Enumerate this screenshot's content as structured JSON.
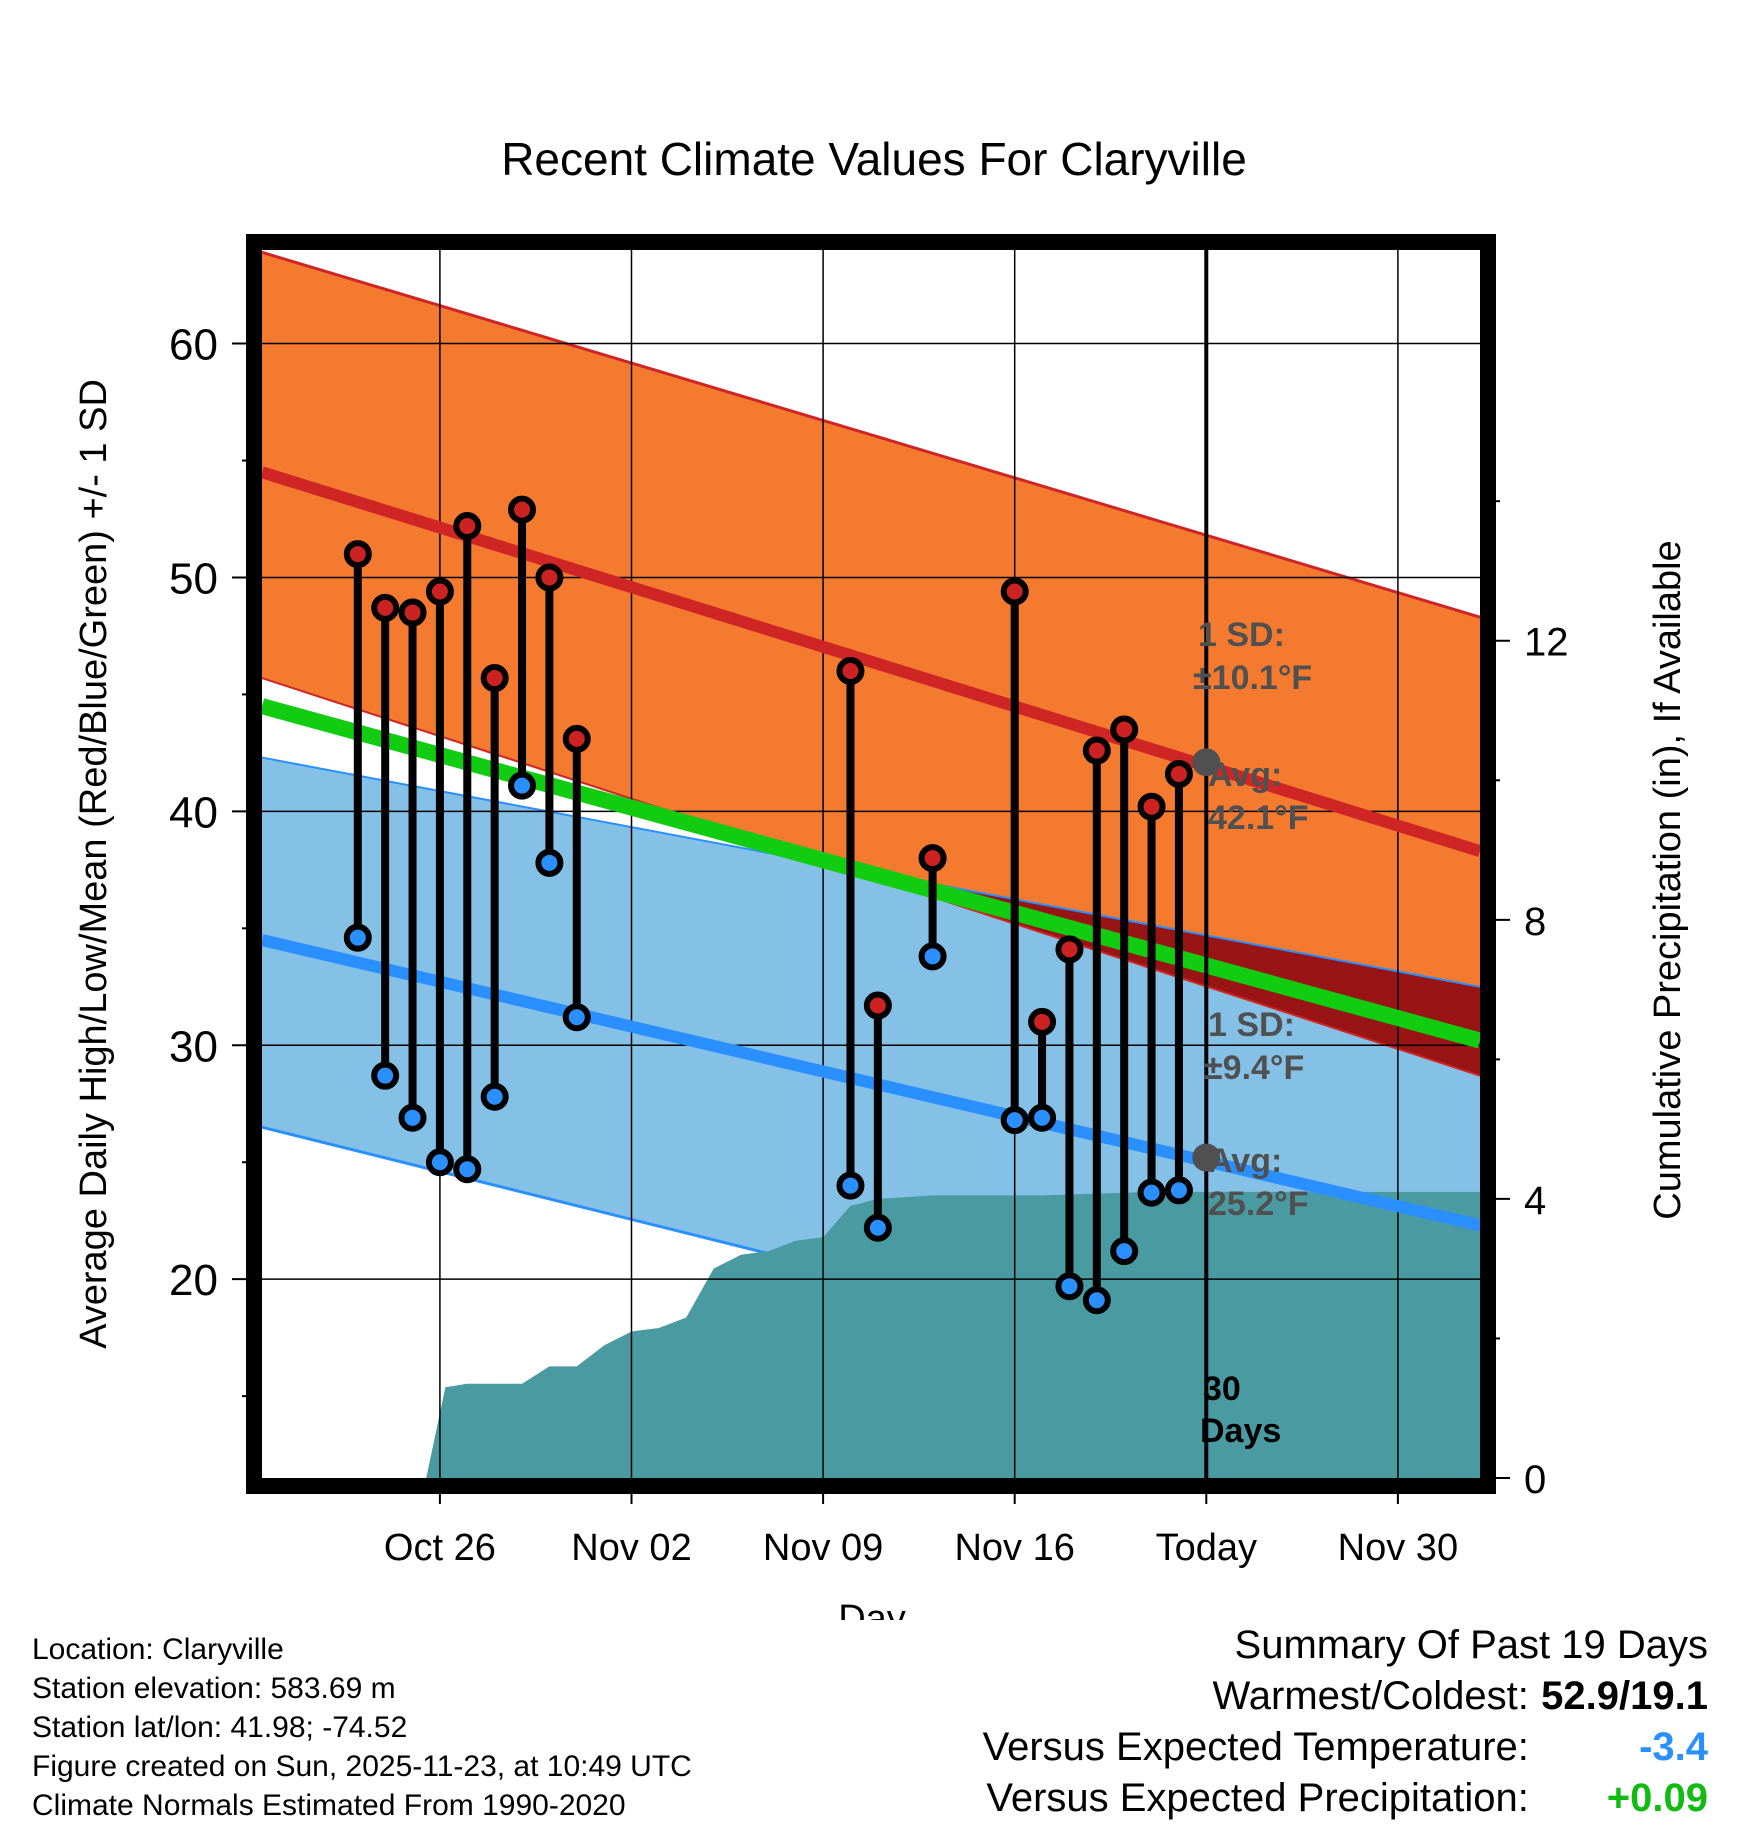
{
  "chart_data": {
    "type": "line",
    "title": "Recent Climate Values For Claryville",
    "xlabel": "Day",
    "ylabel": "Average Daily High/Low/Mean (Red/Blue/Green) +/- 1 SD",
    "y2label": "Cumulative Precipitation (in), If Available",
    "ylim": [
      11.5,
      64
    ],
    "y2lim": [
      0,
      17.6
    ],
    "xlim_days_from_today": [
      -34.5,
      10
    ],
    "x_ticks": [
      {
        "label": "Oct 26",
        "day": -28
      },
      {
        "label": "Nov 02",
        "day": -21
      },
      {
        "label": "Nov 09",
        "day": -14
      },
      {
        "label": "Nov 16",
        "day": -7
      },
      {
        "label": "Today",
        "day": 0
      },
      {
        "label": "Nov 30",
        "day": 7
      }
    ],
    "y_ticks": [
      20,
      30,
      40,
      50,
      60
    ],
    "y2_ticks": [
      0,
      4,
      8,
      12
    ],
    "normals": {
      "start_day": -34.5,
      "end_day": 10,
      "high_avg": [
        54.5,
        38.3
      ],
      "high_upper": [
        63.9,
        48.3
      ],
      "high_lower": [
        45.7,
        28.7
      ],
      "low_avg": [
        34.5,
        22.3
      ],
      "low_upper": [
        42.3,
        32.5
      ],
      "low_lower": [
        26.5,
        13.5
      ],
      "mean_avg": [
        44.5,
        30.2
      ]
    },
    "series": [
      {
        "name": "Daily High",
        "color": "#cc2222",
        "points": [
          {
            "day": -31,
            "value": 51.0
          },
          {
            "day": -30,
            "value": 48.7
          },
          {
            "day": -29,
            "value": 48.5
          },
          {
            "day": -28,
            "value": 49.4
          },
          {
            "day": -27,
            "value": 52.2
          },
          {
            "day": -26,
            "value": 45.7
          },
          {
            "day": -25,
            "value": 52.9
          },
          {
            "day": -24,
            "value": 50.0
          },
          {
            "day": -23,
            "value": 43.1
          },
          {
            "day": -13,
            "value": 46.0
          },
          {
            "day": -12,
            "value": 31.7
          },
          {
            "day": -10,
            "value": 38.0
          },
          {
            "day": -7,
            "value": 49.4
          },
          {
            "day": -6,
            "value": 31.0
          },
          {
            "day": -5,
            "value": 34.1
          },
          {
            "day": -4,
            "value": 42.6
          },
          {
            "day": -3,
            "value": 43.5
          },
          {
            "day": -2,
            "value": 40.2
          },
          {
            "day": -1,
            "value": 41.6
          }
        ]
      },
      {
        "name": "Daily Low",
        "color": "#2a8fff",
        "points": [
          {
            "day": -31,
            "value": 34.6
          },
          {
            "day": -30,
            "value": 28.7
          },
          {
            "day": -29,
            "value": 26.9
          },
          {
            "day": -28,
            "value": 25.0
          },
          {
            "day": -27,
            "value": 24.7
          },
          {
            "day": -26,
            "value": 27.8
          },
          {
            "day": -25,
            "value": 41.1
          },
          {
            "day": -24,
            "value": 37.8
          },
          {
            "day": -23,
            "value": 31.2
          },
          {
            "day": -13,
            "value": 24.0
          },
          {
            "day": -12,
            "value": 22.2
          },
          {
            "day": -10,
            "value": 33.8
          },
          {
            "day": -7,
            "value": 26.8
          },
          {
            "day": -6,
            "value": 26.9
          },
          {
            "day": -5,
            "value": 19.7
          },
          {
            "day": -4,
            "value": 19.1
          },
          {
            "day": -3,
            "value": 21.2
          },
          {
            "day": -2,
            "value": 23.7
          },
          {
            "day": -1,
            "value": 23.8
          }
        ]
      }
    ],
    "precipitation": {
      "color": "#4a9aa2",
      "points": [
        {
          "day": -28.5,
          "value": 0
        },
        {
          "day": -27.8,
          "value": 1.3
        },
        {
          "day": -27,
          "value": 1.35
        },
        {
          "day": -26,
          "value": 1.35
        },
        {
          "day": -25,
          "value": 1.35
        },
        {
          "day": -24,
          "value": 1.6
        },
        {
          "day": -23,
          "value": 1.6
        },
        {
          "day": -22,
          "value": 1.9
        },
        {
          "day": -21,
          "value": 2.1
        },
        {
          "day": -20,
          "value": 2.15
        },
        {
          "day": -19,
          "value": 2.3
        },
        {
          "day": -18,
          "value": 3.0
        },
        {
          "day": -17,
          "value": 3.2
        },
        {
          "day": -16,
          "value": 3.25
        },
        {
          "day": -15,
          "value": 3.4
        },
        {
          "day": -14,
          "value": 3.45
        },
        {
          "day": -13,
          "value": 3.9
        },
        {
          "day": -12,
          "value": 4.0
        },
        {
          "day": -10,
          "value": 4.05
        },
        {
          "day": -6,
          "value": 4.05
        },
        {
          "day": -2,
          "value": 4.1
        },
        {
          "day": 10,
          "value": 4.1
        }
      ]
    },
    "annotations": [
      {
        "text": "1 SD:",
        "series": "high"
      },
      {
        "text": "±10.1°F",
        "series": "high"
      },
      {
        "text": "Avg:",
        "series": "high"
      },
      {
        "text": "42.1°F",
        "series": "high"
      },
      {
        "text": "1 SD:",
        "series": "low"
      },
      {
        "text": "±9.4°F",
        "series": "low"
      },
      {
        "text": "Avg:",
        "series": "low"
      },
      {
        "text": "25.2°F",
        "series": "low"
      },
      {
        "text": "30",
        "series": "window"
      },
      {
        "text": "Days",
        "series": "window"
      }
    ],
    "today_markers": [
      {
        "series": "high",
        "value": 42.1
      },
      {
        "series": "low",
        "value": 25.2
      }
    ]
  },
  "footer": {
    "lines": [
      "Location: Claryville",
      "Station elevation: 583.69 m",
      "Station lat/lon: 41.98; -74.52",
      "Figure created on Sun, 2025-11-23, at 10:49 UTC",
      "Climate Normals Estimated From 1990-2020"
    ]
  },
  "summary": {
    "title": "Summary Of Past 19 Days",
    "warmest_label": "Warmest/Coldest:",
    "warmest_value": "52.9/19.1",
    "temp_label": "Versus Expected Temperature:",
    "temp_value": "-3.4",
    "temp_color": "#2a8fff",
    "precip_label": "Versus Expected Precipitation:",
    "precip_value": "+0.09",
    "precip_color": "#11bb11"
  }
}
